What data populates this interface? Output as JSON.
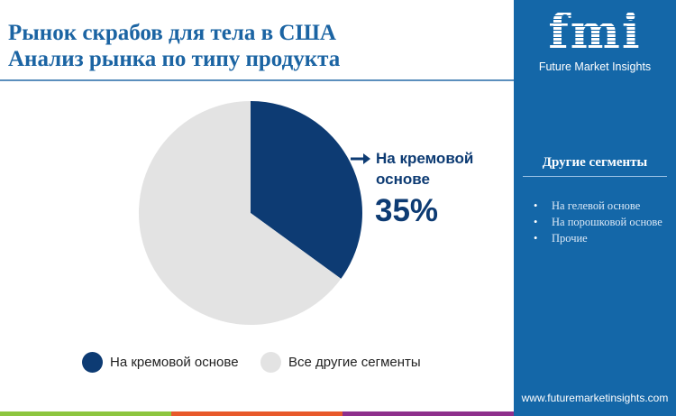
{
  "title_line1": "Рынок скрабов для тела в США",
  "title_line2": "Анализ рынка по типу продукта",
  "chart_data": {
    "type": "pie",
    "title": "Рынок скрабов для тела в США — Анализ рынка по типу продукта",
    "slices": [
      {
        "label": "На кремовой основе",
        "value": 35,
        "color": "#0d3b73"
      },
      {
        "label": "Все другие сегменты",
        "value": 65,
        "color": "#e3e3e3"
      }
    ],
    "callout": {
      "label": "На кремовой основе",
      "value_text": "35%"
    },
    "legend_placement": "bottom"
  },
  "sidebar": {
    "logo_text": "fmi",
    "logo_subtitle": "Future Market Insights",
    "segments_heading": "Другие сегменты",
    "segments": [
      "На гелевой основе",
      "На порошковой основе",
      "Прочие"
    ],
    "url": "www.futuremarketinsights.com"
  },
  "colors": {
    "accent": "#1467a8",
    "stripe": [
      "#8dc63f",
      "#e8592a",
      "#8e2f8c"
    ]
  }
}
